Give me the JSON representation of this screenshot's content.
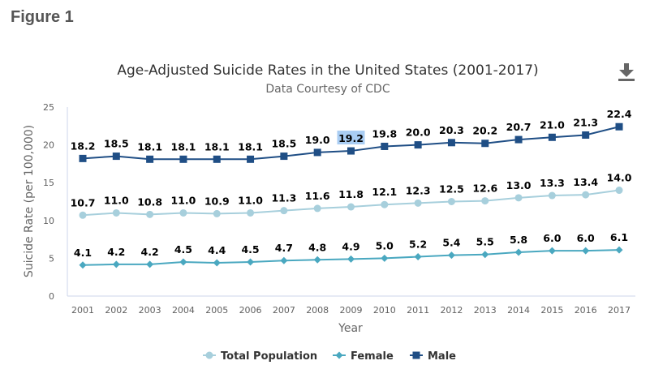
{
  "page": {
    "figure_label": "Figure 1"
  },
  "toolbar": {
    "download_icon": "download-icon"
  },
  "chart_data": {
    "type": "line",
    "title": "Age-Adjusted Suicide Rates in the United States (2001-2017)",
    "subtitle": "Data Courtesy of CDC",
    "xlabel": "Year",
    "ylabel": "Suicide Rate (per 100,000)",
    "ylim": [
      0,
      25
    ],
    "yticks": [
      "0",
      "5",
      "10",
      "15",
      "20",
      "25"
    ],
    "categories": [
      "2001",
      "2002",
      "2003",
      "2004",
      "2005",
      "2006",
      "2007",
      "2008",
      "2009",
      "2010",
      "2011",
      "2012",
      "2013",
      "2014",
      "2015",
      "2016",
      "2017"
    ],
    "legend_position": "bottom-center",
    "grid": false,
    "highlighted_label": {
      "series": "Male",
      "category": "2009"
    },
    "series": [
      {
        "name": "Total Population",
        "color": "#a7cfdc",
        "marker": "circle",
        "values": [
          10.7,
          11.0,
          10.8,
          11.0,
          10.9,
          11.0,
          11.3,
          11.6,
          11.8,
          12.1,
          12.3,
          12.5,
          12.6,
          13.0,
          13.3,
          13.4,
          14.0
        ]
      },
      {
        "name": "Female",
        "color": "#4aa8c0",
        "marker": "diamond",
        "values": [
          4.1,
          4.2,
          4.2,
          4.5,
          4.4,
          4.5,
          4.7,
          4.8,
          4.9,
          5.0,
          5.2,
          5.4,
          5.5,
          5.8,
          6.0,
          6.0,
          6.1
        ]
      },
      {
        "name": "Male",
        "color": "#1f4e85",
        "marker": "square",
        "values": [
          18.2,
          18.5,
          18.1,
          18.1,
          18.1,
          18.1,
          18.5,
          19.0,
          19.2,
          19.8,
          20.0,
          20.3,
          20.2,
          20.7,
          21.0,
          21.3,
          22.4
        ]
      }
    ]
  }
}
